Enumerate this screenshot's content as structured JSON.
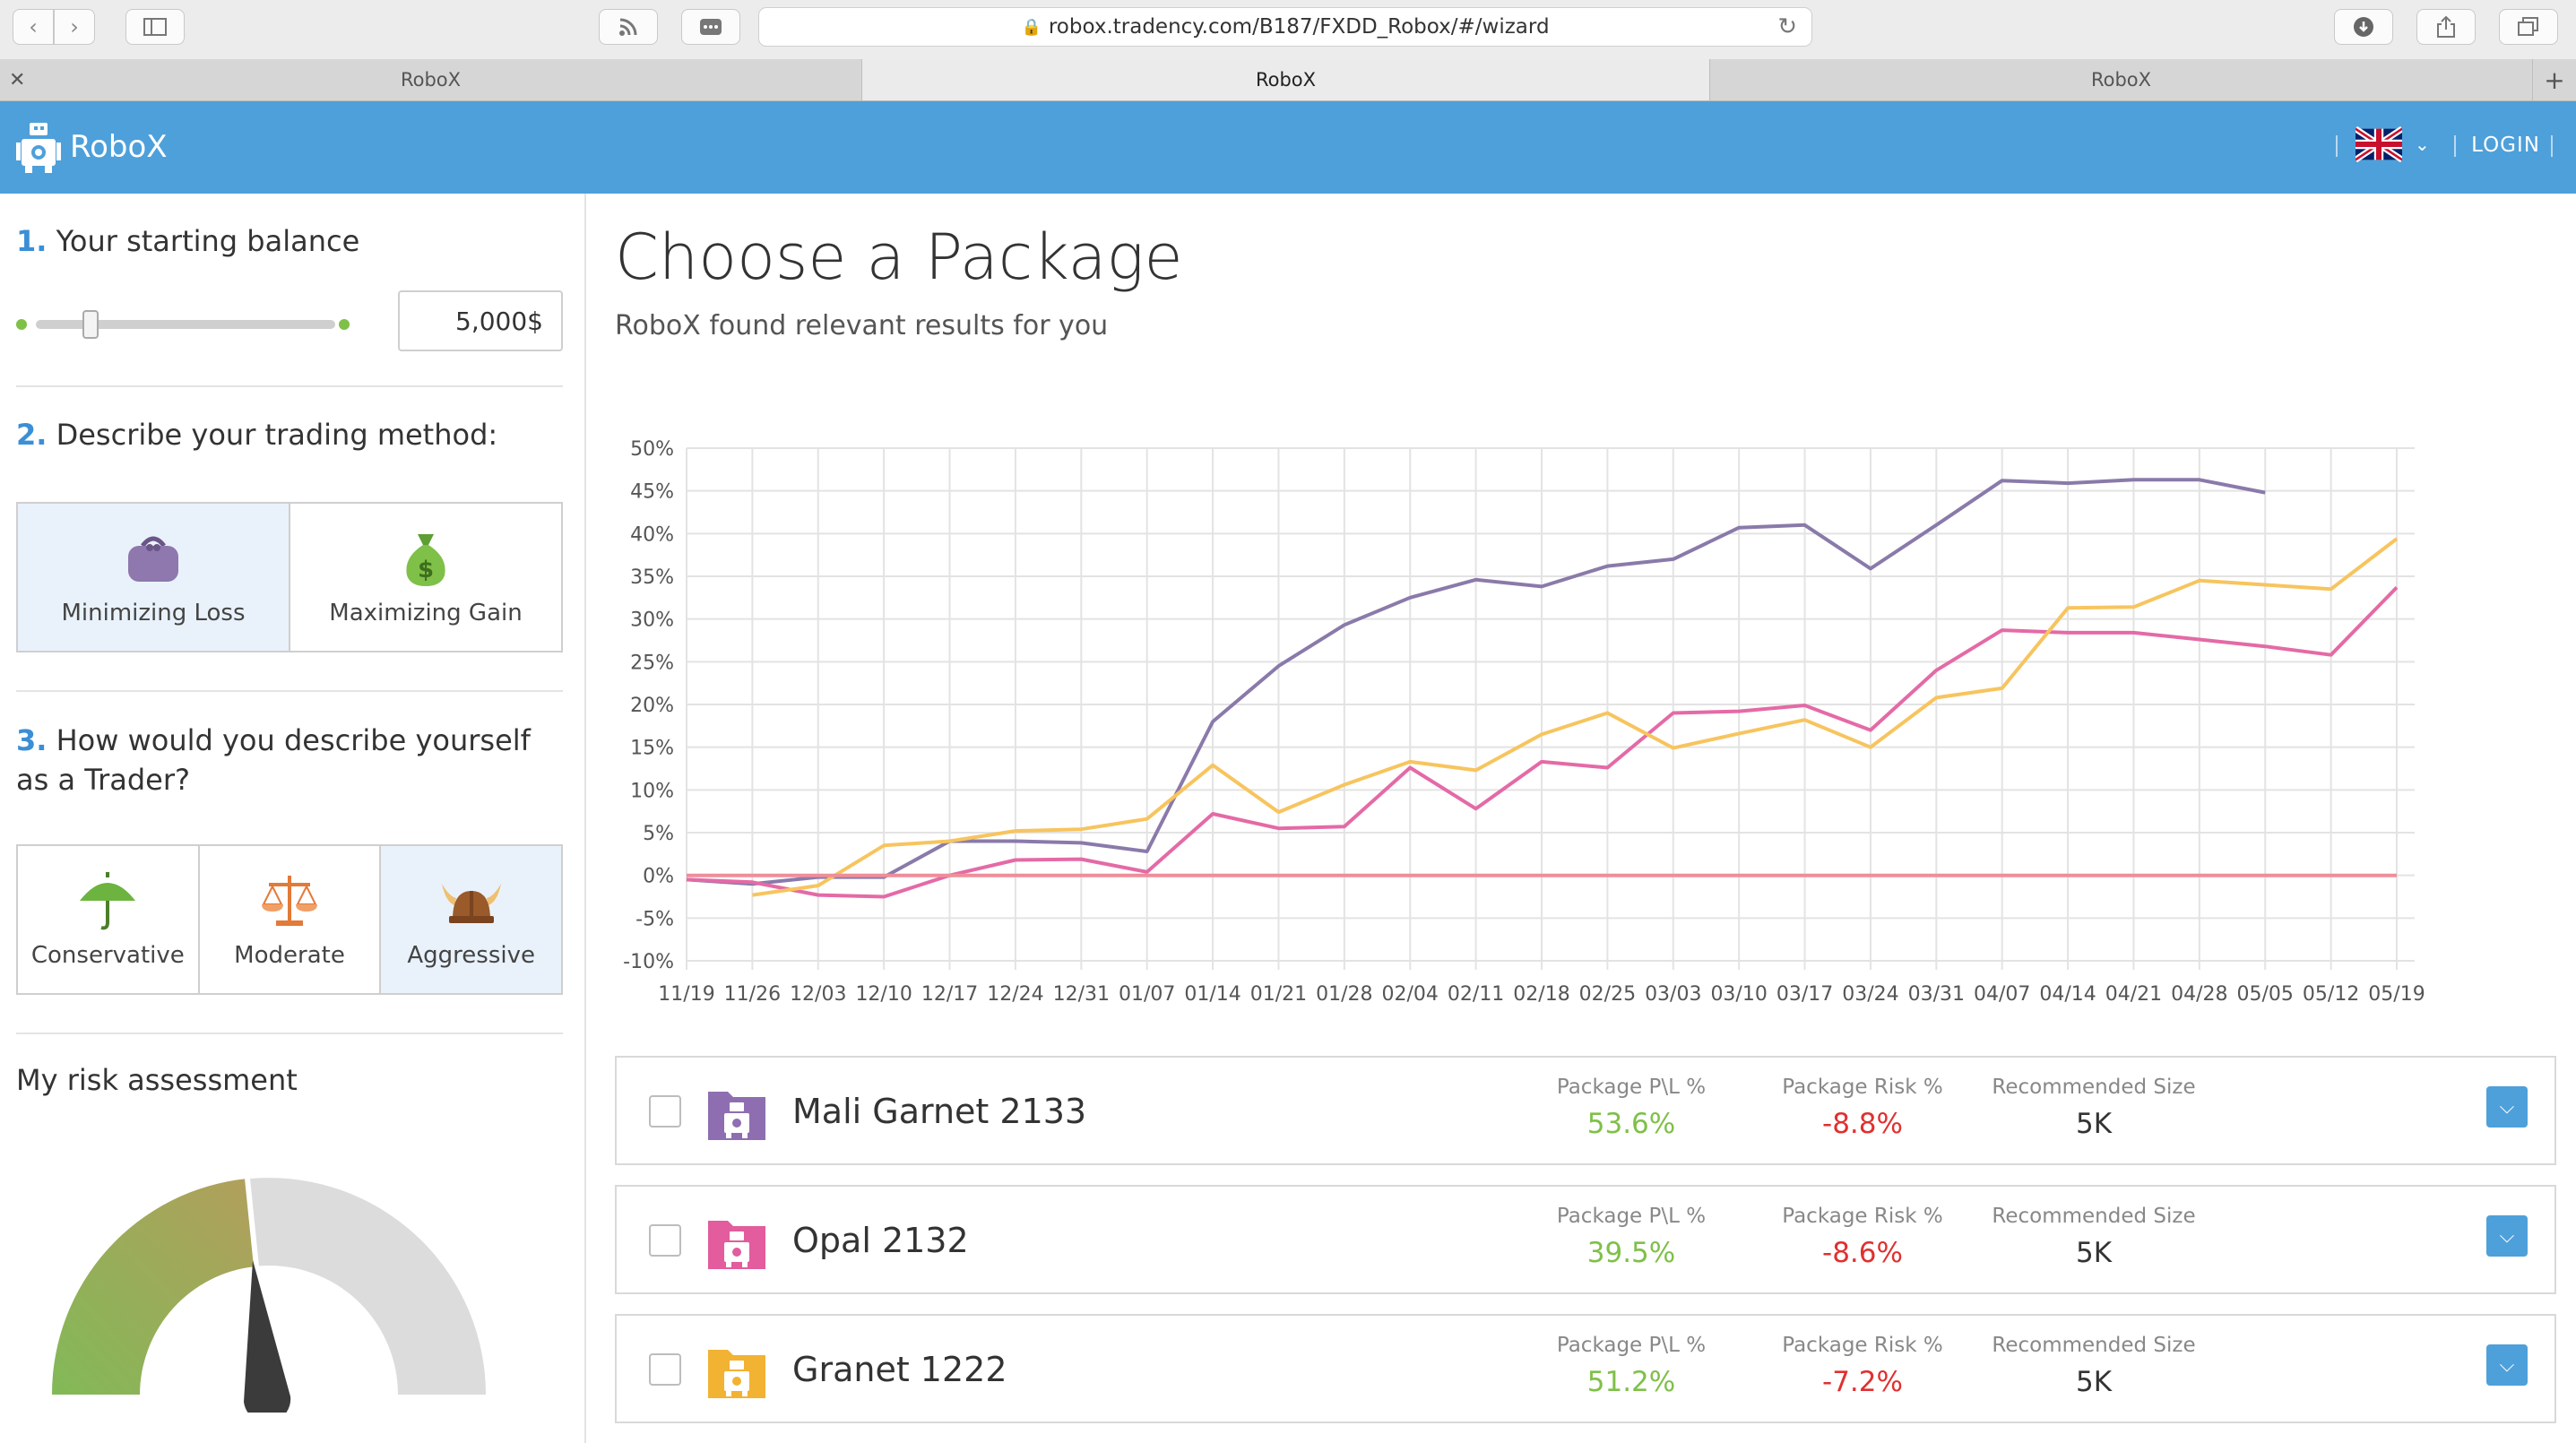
{
  "browser": {
    "url": "robox.tradency.com/B187/FXDD_Robox/#/wizard",
    "tabs": [
      "RoboX",
      "RoboX",
      "RoboX"
    ]
  },
  "header": {
    "brand": "RoboX",
    "login": "LOGIN",
    "language_flag": "uk-flag-icon"
  },
  "sidebar": {
    "step1_num": "1.",
    "step1_label": "Your starting balance",
    "balance": "5,000$",
    "step2_num": "2.",
    "step2_label": "Describe your trading method:",
    "methods": [
      {
        "label": "Minimizing Loss",
        "icon": "purse-icon",
        "selected": true
      },
      {
        "label": "Maximizing Gain",
        "icon": "money-bag-icon",
        "selected": false
      }
    ],
    "step3_num": "3.",
    "step3_label": "How would you describe yourself as a Trader?",
    "trader_types": [
      {
        "label": "Conservative",
        "icon": "umbrella-icon",
        "selected": false
      },
      {
        "label": "Moderate",
        "icon": "scales-icon",
        "selected": false
      },
      {
        "label": "Aggressive",
        "icon": "viking-helmet-icon",
        "selected": true
      }
    ],
    "risk_title": "My risk assessment"
  },
  "main": {
    "title": "Choose a Package",
    "subtitle": "RoboX found relevant results for you"
  },
  "chart_data": {
    "type": "line",
    "x": [
      "11/19",
      "11/26",
      "12/03",
      "12/10",
      "12/17",
      "12/24",
      "12/31",
      "01/07",
      "01/14",
      "01/21",
      "01/28",
      "02/04",
      "02/11",
      "02/18",
      "02/25",
      "03/03",
      "03/10",
      "03/17",
      "03/24",
      "03/31",
      "04/07",
      "04/14",
      "04/21",
      "04/28",
      "05/05",
      "05/12",
      "05/19"
    ],
    "y_ticks": [
      "50%",
      "45%",
      "40%",
      "35%",
      "30%",
      "25%",
      "20%",
      "15%",
      "10%",
      "5%",
      "0%",
      "-5%",
      "-10%"
    ],
    "ylim": [
      -10,
      50
    ],
    "grid": true,
    "series": [
      {
        "color": "#8a7aaa",
        "values": [
          -0.5,
          -1,
          -0.2,
          -0.2,
          4,
          4,
          3.8,
          2.8,
          18,
          24.5,
          29.3,
          32.5,
          34.6,
          33.8,
          36.2,
          37,
          40.7,
          41,
          35.9,
          41,
          46.2,
          45.9,
          46.3,
          46.3,
          44.8,
          null,
          null
        ]
      },
      {
        "color": "#e46aa6",
        "values": [
          -0.5,
          -0.8,
          -2.3,
          -2.5,
          0,
          1.8,
          1.9,
          0.4,
          7.2,
          5.5,
          5.7,
          12.6,
          7.8,
          13.3,
          12.6,
          19,
          19.2,
          19.9,
          17,
          24,
          28.7,
          28.4,
          28.4,
          27.6,
          26.8,
          25.8,
          33.7
        ]
      },
      {
        "color": "#f7c45e",
        "values": [
          null,
          -2.3,
          -1.2,
          3.5,
          4,
          5.2,
          5.4,
          6.6,
          12.9,
          7.4,
          10.6,
          13.3,
          12.3,
          16.5,
          19,
          14.9,
          16.6,
          18.2,
          15,
          20.8,
          21.9,
          31.3,
          31.4,
          34.5,
          34,
          33.5,
          39.4
        ]
      },
      {
        "color": "#ef8e9a",
        "values": [
          0,
          0,
          0,
          0,
          0,
          0,
          0,
          0,
          0,
          0,
          0,
          0,
          0,
          0,
          0,
          0,
          0,
          0,
          0,
          0,
          0,
          0,
          0,
          0,
          0,
          0,
          0
        ]
      }
    ]
  },
  "packages": {
    "pl_label": "Package P\\L %",
    "risk_label": "Package Risk %",
    "size_label": "Recommended Size",
    "items": [
      {
        "name": "Mali Garnet 2133",
        "pl": "53.6%",
        "risk": "-8.8%",
        "size": "5K",
        "color": "#8e6fb0"
      },
      {
        "name": "Opal 2132",
        "pl": "39.5%",
        "risk": "-8.6%",
        "size": "5K",
        "color": "#e25c9e"
      },
      {
        "name": "Granet 1222",
        "pl": "51.2%",
        "risk": "-7.2%",
        "size": "5K",
        "color": "#f2b233"
      }
    ]
  },
  "colors": {
    "accent": "#4ea0da",
    "positive": "#7fc048",
    "negative": "#e0302f"
  }
}
